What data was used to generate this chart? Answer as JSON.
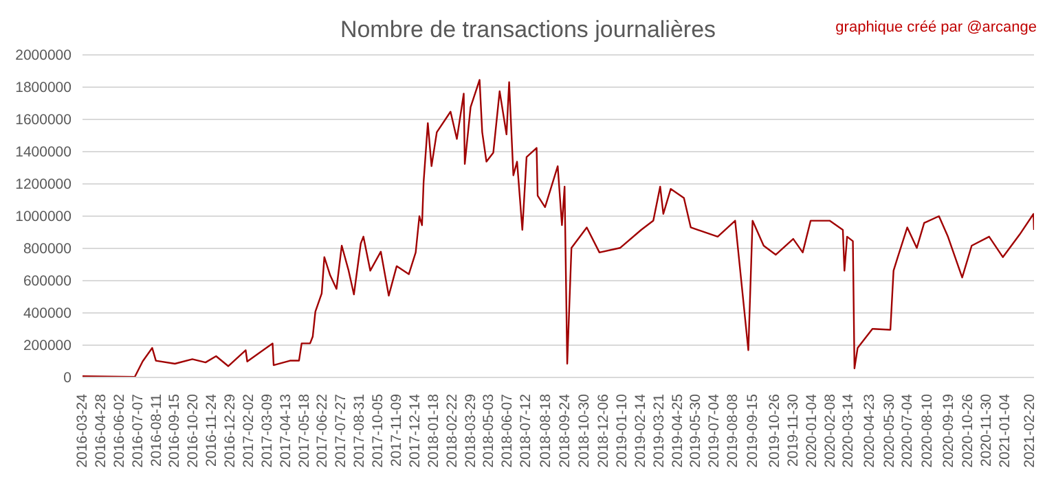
{
  "chart_data": {
    "type": "line",
    "title": "Nombre de transactions journalières",
    "annotations": [
      "graphique créé par @arcange"
    ],
    "x": [
      "2016-03-24",
      "2016-07-01",
      "2016-07-16",
      "2016-08-03",
      "2016-08-10",
      "2016-09-15",
      "2016-10-18",
      "2016-11-12",
      "2016-12-02",
      "2016-12-25",
      "2017-01-27",
      "2017-01-30",
      "2017-03-19",
      "2017-03-21",
      "2017-04-21",
      "2017-05-08",
      "2017-05-13",
      "2017-05-29",
      "2017-06-03",
      "2017-06-08",
      "2017-06-20",
      "2017-06-25",
      "2017-07-06",
      "2017-07-18",
      "2017-07-28",
      "2017-08-10",
      "2017-08-20",
      "2017-09-02",
      "2017-09-07",
      "2017-09-20",
      "2017-10-10",
      "2017-10-25",
      "2017-11-09",
      "2017-12-02",
      "2017-12-15",
      "2017-12-22",
      "2017-12-27",
      "2017-12-30",
      "2018-01-07",
      "2018-01-14",
      "2018-01-24",
      "2018-02-19",
      "2018-03-03",
      "2018-03-16",
      "2018-03-18",
      "2018-03-29",
      "2018-04-15",
      "2018-04-20",
      "2018-04-28",
      "2018-05-11",
      "2018-05-23",
      "2018-06-05",
      "2018-06-10",
      "2018-06-18",
      "2018-06-25",
      "2018-07-05",
      "2018-07-13",
      "2018-08-01",
      "2018-08-03",
      "2018-08-17",
      "2018-09-10",
      "2018-09-18",
      "2018-09-23",
      "2018-09-28",
      "2018-10-06",
      "2018-11-04",
      "2018-11-28",
      "2019-01-06",
      "2019-02-15",
      "2019-03-10",
      "2019-03-23",
      "2019-03-29",
      "2019-04-12",
      "2019-05-07",
      "2019-05-20",
      "2019-07-10",
      "2019-08-12",
      "2019-09-06",
      "2019-09-14",
      "2019-10-05",
      "2019-10-28",
      "2019-11-30",
      "2019-12-18",
      "2020-01-02",
      "2020-02-07",
      "2020-03-03",
      "2020-03-06",
      "2020-03-11",
      "2020-03-22",
      "2020-03-25",
      "2020-03-31",
      "2020-04-28",
      "2020-05-30",
      "2020-06-01",
      "2020-06-07",
      "2020-06-15",
      "2020-07-03",
      "2020-07-21",
      "2020-08-04",
      "2020-09-01",
      "2020-09-18",
      "2020-10-15",
      "2020-11-02",
      "2020-12-05",
      "2020-12-31",
      "2021-02-01",
      "2021-02-27",
      "2021-02-28"
    ],
    "series": [
      {
        "color": "#a00000",
        "values": [
          8000,
          3000,
          100000,
          183000,
          104000,
          85000,
          113000,
          93000,
          132000,
          70000,
          169000,
          99000,
          211000,
          76000,
          104000,
          104000,
          211000,
          211000,
          253000,
          408000,
          521000,
          746000,
          634000,
          549000,
          817000,
          662000,
          515000,
          831000,
          873000,
          662000,
          780000,
          507000,
          690000,
          640000,
          775000,
          1000000,
          944000,
          1211000,
          1577000,
          1310000,
          1521000,
          1648000,
          1479000,
          1760000,
          1324000,
          1676000,
          1845000,
          1521000,
          1338000,
          1394000,
          1775000,
          1507000,
          1831000,
          1253000,
          1338000,
          915000,
          1366000,
          1423000,
          1127000,
          1056000,
          1310000,
          944000,
          1183000,
          85000,
          803000,
          930000,
          775000,
          803000,
          915000,
          972000,
          1183000,
          1014000,
          1169000,
          1113000,
          930000,
          873000,
          972000,
          169000,
          972000,
          817000,
          761000,
          859000,
          775000,
          972000,
          972000,
          915000,
          662000,
          873000,
          845000,
          56000,
          183000,
          301000,
          296000,
          296000,
          662000,
          746000,
          930000,
          803000,
          958000,
          1000000,
          873000,
          620000,
          817000,
          873000,
          746000,
          887000,
          1014000,
          915000
        ]
      }
    ],
    "xlim": [
      "2016-03-24",
      "2021-02-28"
    ],
    "xticks": [
      "2016-03-24",
      "2016-04-28",
      "2016-06-02",
      "2016-07-07",
      "2016-08-11",
      "2016-09-15",
      "2016-10-20",
      "2016-11-24",
      "2016-12-29",
      "2017-02-02",
      "2017-03-09",
      "2017-04-13",
      "2017-05-18",
      "2017-06-22",
      "2017-07-27",
      "2017-08-31",
      "2017-10-05",
      "2017-11-09",
      "2017-12-14",
      "2018-01-18",
      "2018-02-22",
      "2018-03-29",
      "2018-05-03",
      "2018-06-07",
      "2018-07-12",
      "2018-08-18",
      "2018-09-24",
      "2018-10-30",
      "2018-12-06",
      "2019-01-10",
      "2019-02-14",
      "2019-03-21",
      "2019-04-25",
      "2019-05-30",
      "2019-07-04",
      "2019-08-08",
      "2019-09-15",
      "2019-10-26",
      "2019-11-30",
      "2020-01-04",
      "2020-02-08",
      "2020-03-14",
      "2020-04-23",
      "2020-05-30",
      "2020-07-04",
      "2020-08-10",
      "2020-09-19",
      "2020-10-26",
      "2020-11-30",
      "2021-01-04",
      "2021-02-20"
    ],
    "ylim": [
      0,
      2000000
    ],
    "yticks": [
      0,
      200000,
      400000,
      600000,
      800000,
      1000000,
      1200000,
      1400000,
      1600000,
      1800000,
      2000000
    ],
    "grid": "y",
    "legend": false,
    "marker": "none",
    "line_style": "solid"
  }
}
